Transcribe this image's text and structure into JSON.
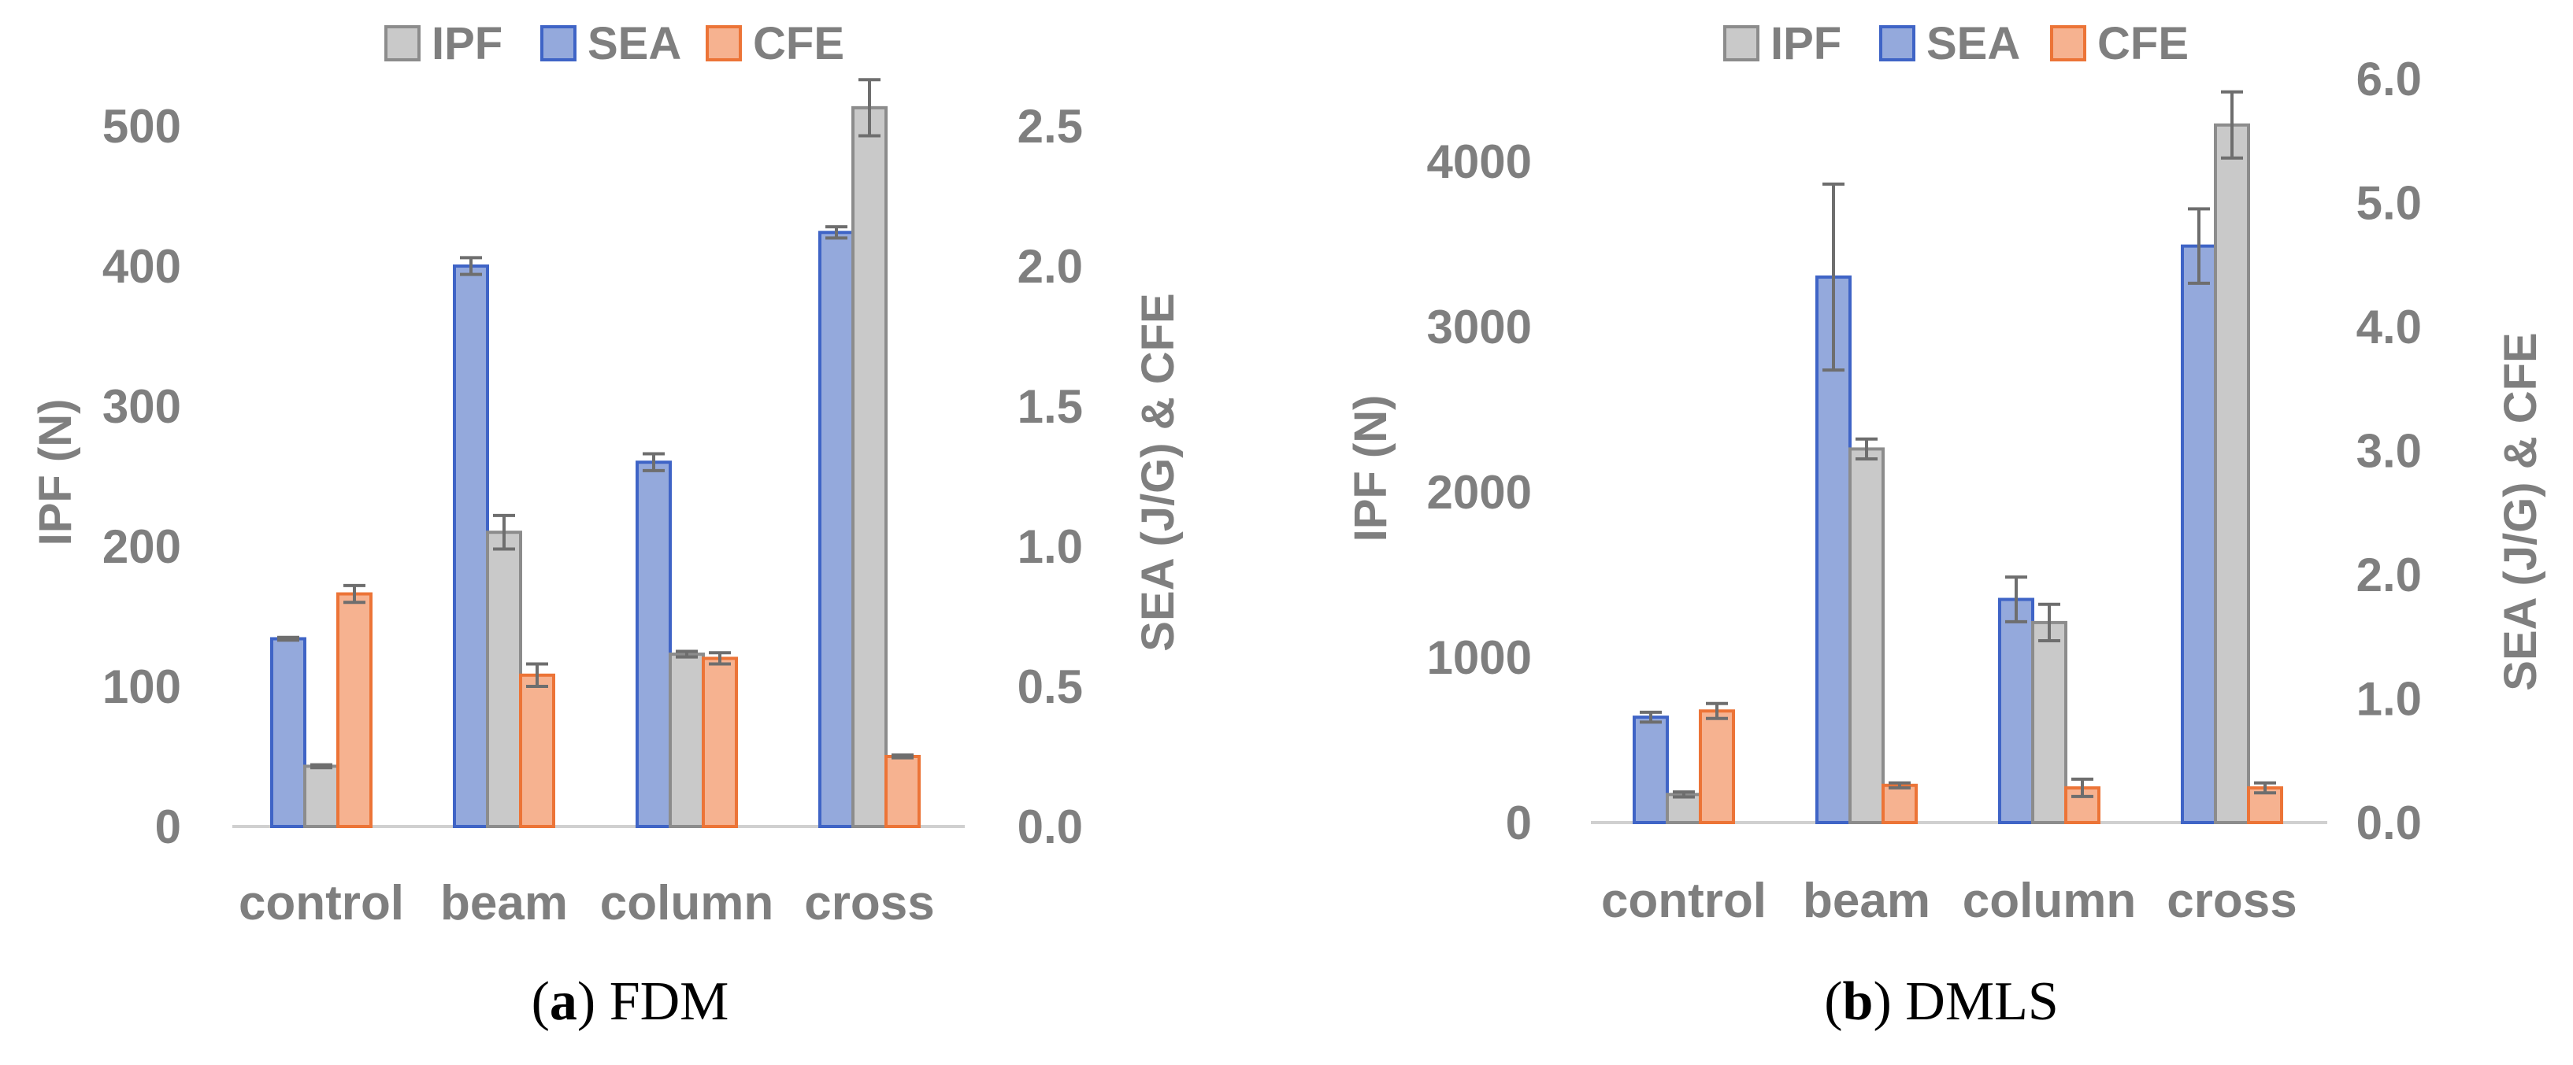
{
  "colors": {
    "ipf_fill": "#c9c9c9",
    "ipf_stroke": "#8c8c8c",
    "sea_fill": "#94a9dc",
    "sea_stroke": "#3f64c6",
    "cfe_fill": "#f6b290",
    "cfe_stroke": "#ec7437",
    "axis_text": "#7f7f7f",
    "axis_line": "#d0d0d0",
    "error_bar": "#6e6e6e"
  },
  "chart_data": [
    {
      "type": "bar",
      "caption_letter": "(a)",
      "caption_bold": "a",
      "caption_text": "FDM",
      "categories": [
        "control",
        "beam",
        "column",
        "cross"
      ],
      "legend": [
        "IPF",
        "SEA",
        "CFE"
      ],
      "legend_position": "top-center",
      "ylabel_left": "IPF (N)",
      "ylabel_right": "SEA (J/G) & CFE",
      "left_ylim": [
        0,
        500
      ],
      "left_ticks": [
        "0",
        "100",
        "200",
        "300",
        "400",
        "500"
      ],
      "right_ylim": [
        0.0,
        2.5
      ],
      "right_ticks": [
        "0.0",
        "0.5",
        "1.0",
        "1.5",
        "2.0",
        "2.5"
      ],
      "series": [
        {
          "name": "SEA",
          "axis": "right",
          "values": [
            0.67,
            2.0,
            1.3,
            2.12
          ],
          "errors": [
            0.005,
            0.03,
            0.03,
            0.02
          ]
        },
        {
          "name": "IPF",
          "axis": "left",
          "values": [
            43,
            210,
            123,
            513
          ],
          "errors": [
            1,
            12,
            2,
            20
          ]
        },
        {
          "name": "CFE",
          "axis": "right",
          "values": [
            0.83,
            0.54,
            0.6,
            0.25
          ],
          "errors": [
            0.03,
            0.04,
            0.02,
            0.005
          ]
        }
      ]
    },
    {
      "type": "bar",
      "caption_letter": "(b)",
      "caption_bold": "b",
      "caption_text": "DMLS",
      "categories": [
        "control",
        "beam",
        "column",
        "cross"
      ],
      "legend": [
        "IPF",
        "SEA",
        "CFE"
      ],
      "legend_position": "top-center",
      "ylabel_left": "IPF (N)",
      "ylabel_right": "SEA (J/G) & CFE",
      "left_ylim": [
        0,
        4500
      ],
      "left_ticks": [
        "0",
        "1000",
        "2000",
        "3000",
        "4000"
      ],
      "right_ylim": [
        0.0,
        6.0
      ],
      "right_ticks": [
        "0.0",
        "1.0",
        "2.0",
        "3.0",
        "4.0",
        "5.0",
        "6.0"
      ],
      "series": [
        {
          "name": "SEA",
          "axis": "right",
          "values": [
            0.85,
            4.4,
            1.8,
            4.65
          ],
          "errors": [
            0.04,
            0.75,
            0.18,
            0.3
          ]
        },
        {
          "name": "IPF",
          "axis": "left",
          "values": [
            170,
            2260,
            1210,
            4220
          ],
          "errors": [
            15,
            60,
            110,
            200
          ]
        },
        {
          "name": "CFE",
          "axis": "right",
          "values": [
            0.9,
            0.3,
            0.28,
            0.28
          ],
          "errors": [
            0.06,
            0.02,
            0.07,
            0.04
          ]
        }
      ]
    }
  ]
}
